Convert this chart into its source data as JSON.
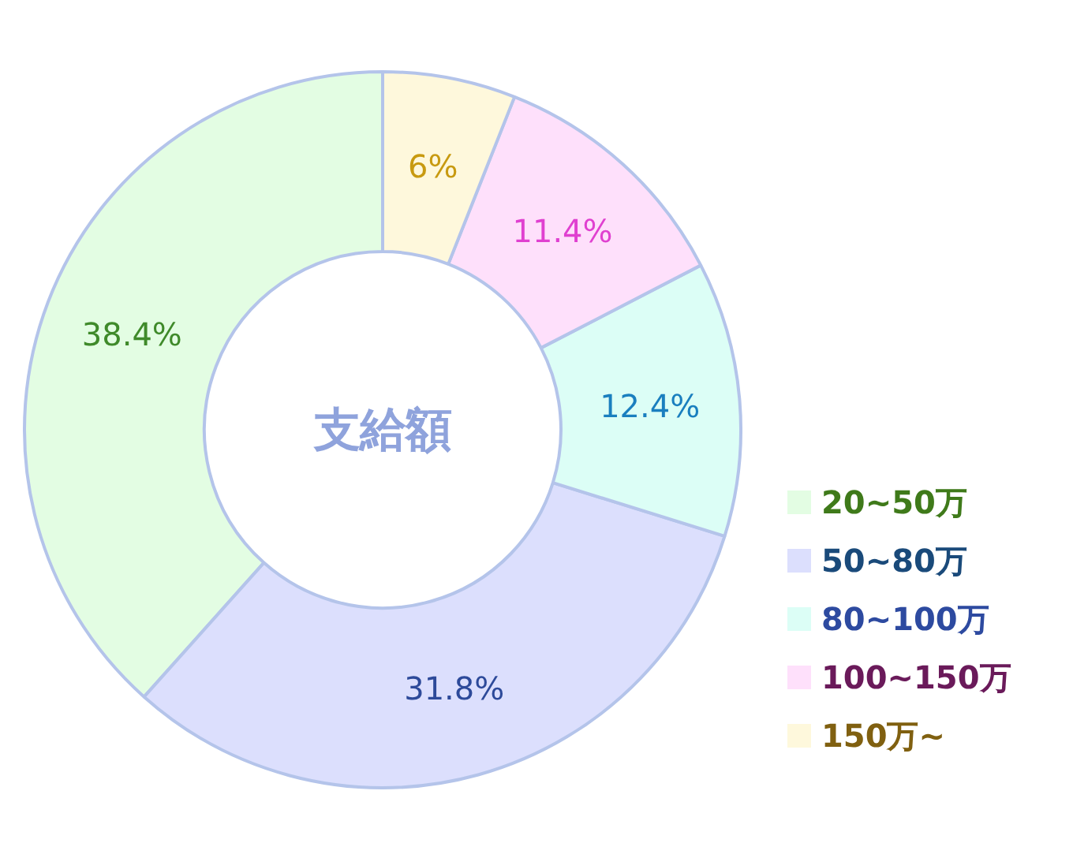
{
  "chart_data": {
    "type": "donut",
    "title": "支給額",
    "categories": [
      "20~50万",
      "50~80万",
      "80~100万",
      "100~150万",
      "150万~"
    ],
    "values": [
      38.4,
      31.8,
      12.4,
      11.4,
      6
    ],
    "value_labels": [
      "38.4%",
      "31.8%",
      "12.4%",
      "11.4%",
      "6%"
    ],
    "colors": [
      "#e3fde3",
      "#dcdffd",
      "#dcfef6",
      "#fee0fb",
      "#fef8dc"
    ],
    "legend": "bottom right"
  }
}
